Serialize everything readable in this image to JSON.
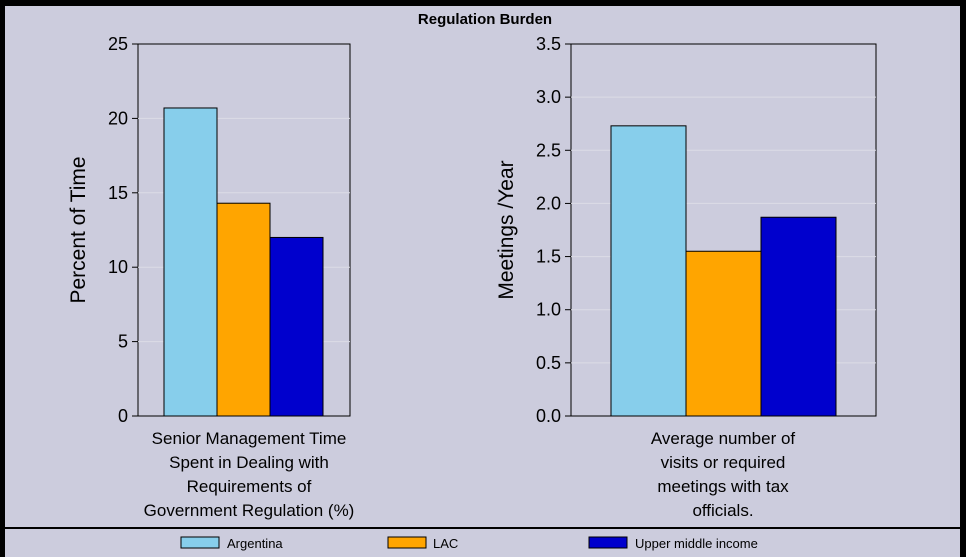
{
  "chart_data": {
    "title": "Regulation Burden",
    "legend_position": "bottom",
    "series": [
      {
        "name": "Argentina",
        "color": "#87CEEB"
      },
      {
        "name": "LAC",
        "color": "#FFA500"
      },
      {
        "name": "Upper middle income",
        "color": "#0000CD"
      }
    ],
    "panels": [
      {
        "type": "bar",
        "ylabel": "Percent of Time",
        "ylim": [
          0,
          25
        ],
        "ticks": [
          "0",
          "5",
          "10",
          "15",
          "20",
          "25"
        ],
        "category_lines": [
          "Senior Management Time",
          "Spent in Dealing with",
          "Requirements of",
          "Government Regulation (%)"
        ],
        "values": [
          20.7,
          14.3,
          12.0
        ]
      },
      {
        "type": "bar",
        "ylabel": "Meetings /Year",
        "ylim": [
          0,
          3.5
        ],
        "ticks": [
          "0.0",
          "0.5",
          "1.0",
          "1.5",
          "2.0",
          "2.5",
          "3.0",
          "3.5"
        ],
        "category_lines": [
          "Average number of",
          "visits or required",
          "meetings with tax",
          "officials."
        ],
        "values": [
          2.73,
          1.55,
          1.87
        ]
      }
    ]
  }
}
